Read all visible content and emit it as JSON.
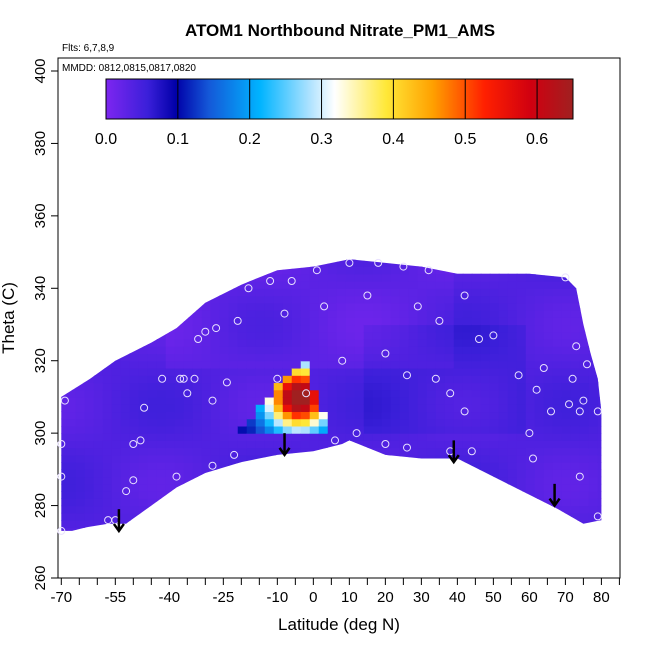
{
  "chart_data": {
    "type": "heatmap",
    "title": "ATOM1 Northbound Nitrate_PM1_AMS",
    "flights_label": "Flts: 6,7,8,9",
    "dates_label": "MMDD: 0812,0815,0817,0820",
    "xlabel": "Latitude (deg N)",
    "ylabel": "Theta (C)",
    "xlim": [
      -72,
      85
    ],
    "ylim": [
      260,
      405
    ],
    "x_ticks": [
      -70,
      -55,
      -40,
      -25,
      -10,
      0,
      10,
      20,
      30,
      40,
      50,
      60,
      70,
      80
    ],
    "x_tick_labels": [
      "-70",
      "-55",
      "-40",
      "-25",
      "-10",
      "0",
      "10",
      "20",
      "30",
      "40",
      "50",
      "60",
      "70",
      "80"
    ],
    "x_minor_ticks": [
      -65,
      -60,
      -50,
      -45,
      -35,
      -30,
      -20,
      -15,
      -5,
      5,
      15,
      25,
      35,
      45,
      55,
      65,
      75,
      85
    ],
    "y_ticks": [
      260,
      280,
      300,
      320,
      340,
      360,
      380,
      400
    ],
    "y_tick_labels": [
      "260",
      "280",
      "300",
      "320",
      "340",
      "360",
      "380",
      "400"
    ],
    "colorbar": {
      "range": [
        0,
        0.65
      ],
      "ticks": [
        0.0,
        0.1,
        0.2,
        0.3,
        0.4,
        0.5,
        0.6
      ],
      "tick_labels": [
        "0.0",
        "0.1",
        "0.2",
        "0.3",
        "0.4",
        "0.5",
        "0.6"
      ]
    },
    "field": {
      "boundary": [
        [
          -70,
          273
        ],
        [
          -67,
          273
        ],
        [
          -63,
          274
        ],
        [
          -57,
          275
        ],
        [
          -52,
          275
        ],
        [
          -45,
          280
        ],
        [
          -38,
          285
        ],
        [
          -30,
          289
        ],
        [
          -20,
          292
        ],
        [
          -10,
          294
        ],
        [
          0,
          295
        ],
        [
          8,
          297
        ],
        [
          10,
          298
        ],
        [
          20,
          294
        ],
        [
          30,
          293
        ],
        [
          40,
          293
        ],
        [
          50,
          288
        ],
        [
          60,
          283
        ],
        [
          68,
          279
        ],
        [
          75,
          275
        ],
        [
          80,
          276
        ],
        [
          80,
          306
        ],
        [
          79,
          315
        ],
        [
          77,
          322
        ],
        [
          75,
          330
        ],
        [
          73,
          340
        ],
        [
          70,
          343
        ],
        [
          60,
          344
        ],
        [
          50,
          344
        ],
        [
          40,
          344
        ],
        [
          30,
          346
        ],
        [
          20,
          347
        ],
        [
          10,
          348
        ],
        [
          0,
          346
        ],
        [
          -10,
          345
        ],
        [
          -15,
          343
        ],
        [
          -20,
          341
        ],
        [
          -30,
          336
        ],
        [
          -38,
          329
        ],
        [
          -45,
          325
        ],
        [
          -55,
          320
        ],
        [
          -62,
          315
        ],
        [
          -70,
          310
        ]
      ],
      "background_value": 0.04,
      "plume": {
        "center": [
          -4,
          310
        ],
        "sigma": [
          6,
          6
        ],
        "peak": 0.6,
        "triangle": [
          [
            -20,
            301
          ],
          [
            5,
            301
          ],
          [
            -3,
            321
          ]
        ]
      }
    },
    "sample_points": [
      [
        -70,
        273
      ],
      [
        -70,
        288
      ],
      [
        -70,
        297
      ],
      [
        -69,
        309
      ],
      [
        -57,
        276
      ],
      [
        -55,
        276
      ],
      [
        -52,
        284
      ],
      [
        -50,
        287
      ],
      [
        -50,
        297
      ],
      [
        -48,
        298
      ],
      [
        -47,
        307
      ],
      [
        -42,
        315
      ],
      [
        -38,
        288
      ],
      [
        -37,
        315
      ],
      [
        -36,
        315
      ],
      [
        -35,
        311
      ],
      [
        -33,
        315
      ],
      [
        -32,
        326
      ],
      [
        -30,
        328
      ],
      [
        -28,
        291
      ],
      [
        -28,
        309
      ],
      [
        -27,
        329
      ],
      [
        -24,
        314
      ],
      [
        -22,
        294
      ],
      [
        -21,
        331
      ],
      [
        -18,
        340
      ],
      [
        -12,
        342
      ],
      [
        -10,
        315
      ],
      [
        -8,
        333
      ],
      [
        -6,
        342
      ],
      [
        -2,
        311
      ],
      [
        1,
        345
      ],
      [
        3,
        335
      ],
      [
        6,
        298
      ],
      [
        8,
        320
      ],
      [
        10,
        347
      ],
      [
        12,
        300
      ],
      [
        15,
        338
      ],
      [
        18,
        347
      ],
      [
        20,
        297
      ],
      [
        20,
        322
      ],
      [
        25,
        346
      ],
      [
        26,
        296
      ],
      [
        26,
        316
      ],
      [
        29,
        335
      ],
      [
        32,
        345
      ],
      [
        34,
        315
      ],
      [
        35,
        331
      ],
      [
        38,
        311
      ],
      [
        38,
        295
      ],
      [
        42,
        338
      ],
      [
        42,
        306
      ],
      [
        44,
        295
      ],
      [
        46,
        326
      ],
      [
        50,
        327
      ],
      [
        57,
        316
      ],
      [
        60,
        300
      ],
      [
        61,
        293
      ],
      [
        62,
        312
      ],
      [
        64,
        318
      ],
      [
        66,
        306
      ],
      [
        70,
        343
      ],
      [
        71,
        308
      ],
      [
        72,
        315
      ],
      [
        73,
        324
      ],
      [
        74,
        288
      ],
      [
        74,
        306
      ],
      [
        75,
        309
      ],
      [
        76,
        319
      ],
      [
        79,
        277
      ],
      [
        79,
        306
      ]
    ],
    "arrows": [
      {
        "lat": -54,
        "theta_start": 279,
        "theta_end": 273
      },
      {
        "lat": -8,
        "theta_start": 300,
        "theta_end": 294
      },
      {
        "lat": 39,
        "theta_start": 298,
        "theta_end": 292
      },
      {
        "lat": 67,
        "theta_start": 286,
        "theta_end": 280
      }
    ]
  }
}
